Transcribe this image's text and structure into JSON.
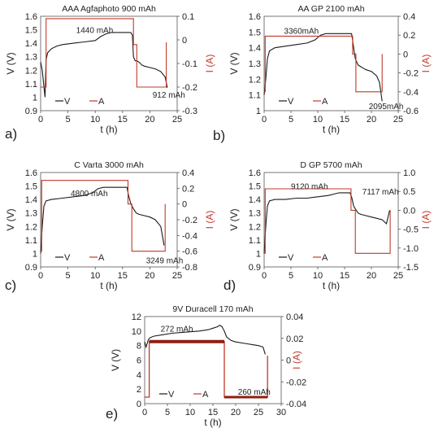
{
  "chart_data": [
    {
      "panel_label": "a)",
      "title": "AAA Agfaphoto 900 mAh",
      "type": "line",
      "xlabel": "t (h)",
      "ylabel": "V (V)",
      "y2label": "I (A)",
      "xlim": [
        0,
        25
      ],
      "ylim": [
        0.9,
        1.6
      ],
      "y2lim": [
        -0.3,
        0.1
      ],
      "xticks": [
        "0",
        "5",
        "10",
        "15",
        "20",
        "25"
      ],
      "yticks": [
        "0.9",
        "1",
        "1.1",
        "1.2",
        "1.3",
        "1.4",
        "1.5",
        "1.6"
      ],
      "y2ticks": [
        "0.1",
        "0",
        "-0.1",
        "-0.2",
        "-0.3"
      ],
      "legend": [
        "V",
        "A"
      ],
      "annotations": [
        {
          "text": "1440 mAh",
          "x": 6.5,
          "y": 1.5
        },
        {
          "text": "912 mAh",
          "x": 20.5,
          "y": 1.02
        }
      ],
      "series": [
        {
          "name": "V",
          "axis": "left",
          "color": "#1a1a1a",
          "x": [
            0,
            0.3,
            0.6,
            0.8,
            1,
            1.3,
            2,
            3,
            4,
            6,
            8,
            10,
            11,
            12,
            13,
            15,
            16.5,
            16.8,
            17,
            17.3,
            17.6,
            18,
            18.5,
            19,
            20,
            21,
            22,
            22.8,
            23.2
          ],
          "y": [
            1.26,
            1.2,
            1.08,
            1.0,
            1.28,
            1.33,
            1.36,
            1.38,
            1.39,
            1.4,
            1.41,
            1.42,
            1.45,
            1.47,
            1.48,
            1.48,
            1.48,
            1.46,
            1.3,
            1.27,
            1.27,
            1.26,
            1.24,
            1.23,
            1.22,
            1.21,
            1.19,
            1.15,
            1.07
          ]
        },
        {
          "name": "A",
          "axis": "right",
          "color": "#c0392b",
          "x": [
            0,
            1,
            1,
            17,
            17,
            17.6,
            17.6,
            23,
            23
          ],
          "y": [
            -0.2,
            -0.2,
            0.09,
            0.09,
            -0.02,
            -0.02,
            -0.2,
            -0.2,
            -0.01
          ]
        }
      ]
    },
    {
      "panel_label": "b)",
      "title": "AA GP 2100 mAh",
      "type": "line",
      "xlabel": "t (h)",
      "ylabel": "V (V)",
      "y2label": "I (A)",
      "xlim": [
        0,
        25
      ],
      "ylim": [
        1.0,
        1.6
      ],
      "y2lim": [
        -0.6,
        0.4
      ],
      "xticks": [
        "0",
        "5",
        "10",
        "15",
        "20",
        "25"
      ],
      "yticks": [
        "1",
        "1.1",
        "1.2",
        "1.3",
        "1.4",
        "1.5",
        "1.6"
      ],
      "y2ticks": [
        "0.4",
        "0.2",
        "0",
        "-0.2",
        "-0.4",
        "-0.6"
      ],
      "legend": [
        "V",
        "A"
      ],
      "annotations": [
        {
          "text": "3360mAh",
          "x": 3.7,
          "y": 1.51
        },
        {
          "text": "2095mAh",
          "x": 19.5,
          "y": 1.03
        }
      ],
      "series": [
        {
          "name": "V",
          "axis": "left",
          "color": "#1a1a1a",
          "x": [
            0,
            0.3,
            0.6,
            1,
            2,
            4,
            6,
            8,
            9.5,
            10.5,
            11.5,
            13,
            15,
            16.3,
            16.6,
            17,
            17.5,
            18,
            18.5,
            19,
            20,
            21,
            21.5,
            22
          ],
          "y": [
            1.1,
            1.2,
            1.33,
            1.38,
            1.4,
            1.41,
            1.42,
            1.43,
            1.45,
            1.48,
            1.49,
            1.49,
            1.49,
            1.49,
            1.42,
            1.33,
            1.29,
            1.28,
            1.27,
            1.26,
            1.25,
            1.22,
            1.18,
            1.06
          ]
        },
        {
          "name": "A",
          "axis": "right",
          "color": "#c0392b",
          "x": [
            0,
            0.2,
            0.2,
            16.5,
            16.5,
            17.1,
            17.1,
            22,
            22
          ],
          "y": [
            -0.4,
            -0.4,
            0.19,
            0.19,
            0.0,
            0.0,
            -0.4,
            -0.4,
            0.0
          ]
        }
      ]
    },
    {
      "panel_label": "c)",
      "title": "C Varta 3000 mAh",
      "type": "line",
      "xlabel": "t (h)",
      "ylabel": "V (V)",
      "y2label": "I (A)",
      "xlim": [
        0,
        25
      ],
      "ylim": [
        0.9,
        1.6
      ],
      "y2lim": [
        -0.8,
        0.4
      ],
      "xticks": [
        "0",
        "5",
        "10",
        "15",
        "20",
        "25"
      ],
      "yticks": [
        "0.9",
        "1",
        "1.1",
        "1.2",
        "1.3",
        "1.4",
        "1.5",
        "1.6"
      ],
      "y2ticks": [
        "0.4",
        "0.2",
        "0",
        "-0.2",
        "-0.4",
        "-0.6",
        "-0.8"
      ],
      "legend": [
        "V",
        "A"
      ],
      "annotations": [
        {
          "text": "4800 mAh",
          "x": 5.5,
          "y": 1.45
        },
        {
          "text": "3249 mAh",
          "x": 19.3,
          "y": 0.95
        }
      ],
      "series": [
        {
          "name": "V",
          "axis": "left",
          "color": "#1a1a1a",
          "x": [
            0,
            0.3,
            0.6,
            1,
            2,
            4,
            6,
            8,
            9.5,
            10.5,
            11.5,
            13,
            15,
            15.8,
            16.1,
            16.5,
            17,
            17.5,
            18,
            19,
            20,
            21,
            22,
            22.6
          ],
          "y": [
            1.0,
            1.2,
            1.35,
            1.39,
            1.4,
            1.41,
            1.42,
            1.43,
            1.45,
            1.48,
            1.49,
            1.49,
            1.49,
            1.49,
            1.43,
            1.37,
            1.33,
            1.3,
            1.29,
            1.28,
            1.27,
            1.25,
            1.2,
            1.06
          ]
        },
        {
          "name": "A",
          "axis": "right",
          "color": "#c0392b",
          "x": [
            0,
            0.2,
            0.2,
            16,
            16,
            16.7,
            16.7,
            22.8,
            22.8
          ],
          "y": [
            -0.6,
            -0.6,
            0.3,
            0.3,
            0.0,
            0.0,
            -0.6,
            -0.6,
            0.0
          ]
        }
      ]
    },
    {
      "panel_label": "d)",
      "title": "D GP 5700 mAh",
      "type": "line",
      "xlabel": "t (h)",
      "ylabel": "V (V)",
      "y2label": "I (A)",
      "xlim": [
        0,
        25
      ],
      "ylim": [
        0.9,
        1.6
      ],
      "y2lim": [
        -1.5,
        1.0
      ],
      "xticks": [
        "0",
        "5",
        "10",
        "15",
        "20",
        "25"
      ],
      "yticks": [
        "0.9",
        "1",
        "1.1",
        "1.2",
        "1.3",
        "1.4",
        "1.5",
        "1.6"
      ],
      "y2ticks": [
        "1.0",
        "0.5",
        "0.0",
        "-0.5",
        "-1.0",
        "-1.5"
      ],
      "legend": [
        "V",
        "A"
      ],
      "annotations": [
        {
          "text": "9120 mAh",
          "x": 5,
          "y": 1.5
        },
        {
          "text": "7117 mAh",
          "x": 18.3,
          "y": 1.46
        }
      ],
      "series": [
        {
          "name": "V",
          "axis": "left",
          "color": "#1a1a1a",
          "x": [
            0,
            0.3,
            0.6,
            1,
            2,
            4,
            6,
            8,
            10,
            12,
            13,
            14,
            15.5,
            16,
            16.3,
            16.7,
            17,
            17.5,
            18,
            19,
            20,
            21,
            22,
            22.8,
            23.4
          ],
          "y": [
            1.0,
            1.2,
            1.35,
            1.39,
            1.4,
            1.4,
            1.41,
            1.41,
            1.42,
            1.43,
            1.44,
            1.45,
            1.45,
            1.45,
            1.42,
            1.35,
            1.33,
            1.3,
            1.29,
            1.28,
            1.27,
            1.26,
            1.25,
            1.22,
            1.32
          ]
        },
        {
          "name": "A",
          "axis": "right",
          "color": "#c0392b",
          "x": [
            0,
            0.2,
            0.2,
            16.2,
            16.2,
            17,
            17,
            23.5,
            23.5
          ],
          "y": [
            -1.14,
            -1.14,
            0.57,
            0.57,
            0.0,
            0.0,
            -1.14,
            -1.14,
            0.0
          ]
        }
      ]
    },
    {
      "panel_label": "e)",
      "title": "9V Duracell 170 mAh",
      "type": "line",
      "xlabel": "t (h)",
      "ylabel": "V (V)",
      "y2label": "I (A)",
      "xlim": [
        0,
        30
      ],
      "ylim": [
        0,
        12
      ],
      "y2lim": [
        -0.04,
        0.04
      ],
      "xticks": [
        "0",
        "5",
        "10",
        "15",
        "20",
        "25",
        "30"
      ],
      "yticks": [
        "0",
        "2",
        "4",
        "6",
        "8",
        "10",
        "12"
      ],
      "y2ticks": [
        "0.04",
        "0.02",
        "0",
        "-0.02",
        "-0.04"
      ],
      "legend": [
        "V",
        "A"
      ],
      "annotations": [
        {
          "text": "272 mAh",
          "x": 3.5,
          "y": 10.4
        },
        {
          "text": "260 mAh",
          "x": 20.5,
          "y": 1.7
        }
      ],
      "series": [
        {
          "name": "V",
          "axis": "left",
          "color": "#1a1a1a",
          "x": [
            0,
            0.3,
            0.8,
            1.2,
            2,
            4,
            6,
            8,
            10,
            12,
            14,
            15,
            16,
            16.5,
            17,
            17.5,
            18,
            19,
            20,
            22,
            24,
            25,
            26,
            26.5
          ],
          "y": [
            8.5,
            7.8,
            8.8,
            9.1,
            9.3,
            9.5,
            9.7,
            9.8,
            9.9,
            10.0,
            10.2,
            10.4,
            10.6,
            10.8,
            10.6,
            10.0,
            9.2,
            8.7,
            8.5,
            8.3,
            8.1,
            8.0,
            7.8,
            6.8
          ]
        },
        {
          "name": "A",
          "axis": "right",
          "color": "#c0392b",
          "x": [
            0,
            1,
            1,
            17.5,
            17.5,
            27,
            27
          ],
          "y": [
            -0.034,
            -0.034,
            0.017,
            0.017,
            -0.034,
            -0.034,
            0.004
          ]
        }
      ]
    }
  ]
}
